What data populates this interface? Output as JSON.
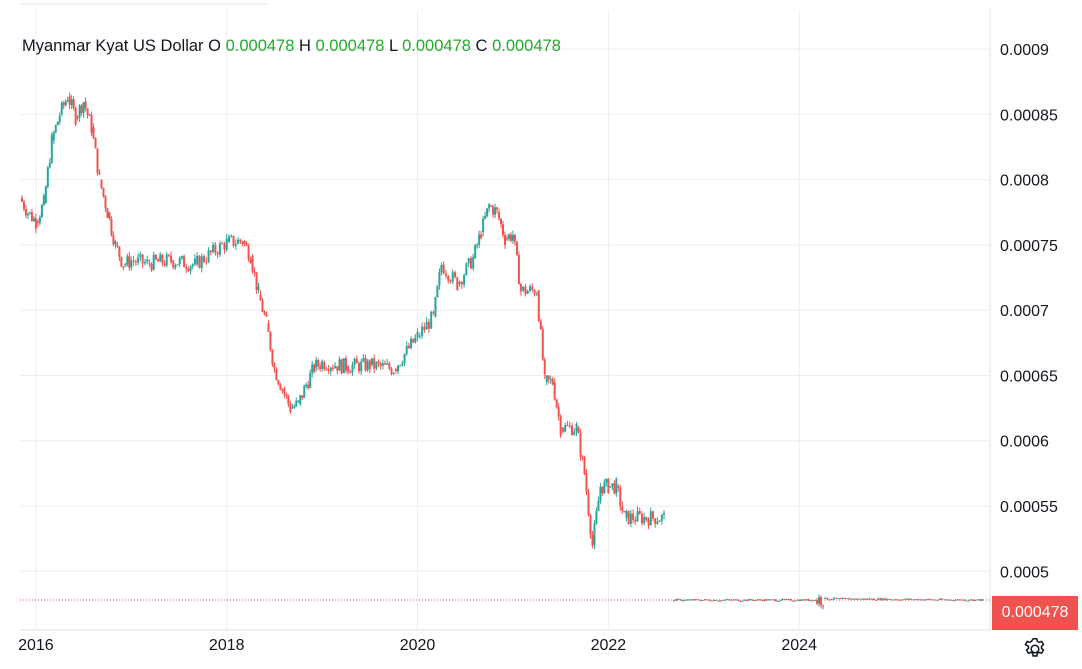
{
  "legend": {
    "symbol": "Myanmar Kyat US Dollar",
    "o_label": "O",
    "o_value": "0.000478",
    "h_label": "H",
    "h_value": "0.000478",
    "l_label": "L",
    "l_value": "0.000478",
    "c_label": "C",
    "c_value": "0.000478"
  },
  "last_price_label": "0.000478",
  "colors": {
    "up": "#26a69a",
    "down": "#ef5350",
    "grid": "#eeeeee",
    "value_text": "#22ab2a"
  },
  "icons": {
    "settings": "gear-icon"
  },
  "chart_data": {
    "type": "candlestick",
    "title": "",
    "xlabel": "",
    "ylabel": "",
    "x_ticks": [
      "2016",
      "2018",
      "2020",
      "2022",
      "2024"
    ],
    "y_ticks": [
      "0.0005",
      "0.00055",
      "0.0006",
      "0.00065",
      "0.0007",
      "0.00075",
      "0.0008",
      "0.00085",
      "0.0009"
    ],
    "ylim": [
      0.000455,
      0.00093
    ],
    "xlim": [
      "2015-11",
      "2026-01"
    ],
    "last_value": 0.000478,
    "grid": true,
    "series": [
      {
        "values": [
          {
            "t": "2015-11",
            "v": 0.000786
          },
          {
            "t": "2015-12",
            "v": 0.000775
          },
          {
            "t": "2016-01",
            "v": 0.000768
          },
          {
            "t": "2016-02",
            "v": 0.000782
          },
          {
            "t": "2016-03",
            "v": 0.00083
          },
          {
            "t": "2016-04",
            "v": 0.00085
          },
          {
            "t": "2016-05",
            "v": 0.000864
          },
          {
            "t": "2016-06",
            "v": 0.000848
          },
          {
            "t": "2016-07",
            "v": 0.00086
          },
          {
            "t": "2016-08",
            "v": 0.00084
          },
          {
            "t": "2016-09",
            "v": 0.0008
          },
          {
            "t": "2016-10",
            "v": 0.000775
          },
          {
            "t": "2016-11",
            "v": 0.00075
          },
          {
            "t": "2016-12",
            "v": 0.000735
          },
          {
            "t": "2017-01",
            "v": 0.000738
          },
          {
            "t": "2017-03",
            "v": 0.000736
          },
          {
            "t": "2017-06",
            "v": 0.000738
          },
          {
            "t": "2017-09",
            "v": 0.000735
          },
          {
            "t": "2018-01",
            "v": 0.000752
          },
          {
            "t": "2018-03",
            "v": 0.000753
          },
          {
            "t": "2018-04",
            "v": 0.000742
          },
          {
            "t": "2018-05",
            "v": 0.000712
          },
          {
            "t": "2018-06",
            "v": 0.00069
          },
          {
            "t": "2018-07",
            "v": 0.000655
          },
          {
            "t": "2018-08",
            "v": 0.00064
          },
          {
            "t": "2018-09",
            "v": 0.000625
          },
          {
            "t": "2018-10",
            "v": 0.000628
          },
          {
            "t": "2018-11",
            "v": 0.000643
          },
          {
            "t": "2018-12",
            "v": 0.000656
          },
          {
            "t": "2019-01",
            "v": 0.00066
          },
          {
            "t": "2019-04",
            "v": 0.000657
          },
          {
            "t": "2019-07",
            "v": 0.000658
          },
          {
            "t": "2019-10",
            "v": 0.000655
          },
          {
            "t": "2020-01",
            "v": 0.00068
          },
          {
            "t": "2020-03",
            "v": 0.000695
          },
          {
            "t": "2020-04",
            "v": 0.000735
          },
          {
            "t": "2020-06",
            "v": 0.00072
          },
          {
            "t": "2020-08",
            "v": 0.00074
          },
          {
            "t": "2020-09",
            "v": 0.00076
          },
          {
            "t": "2020-10",
            "v": 0.00078
          },
          {
            "t": "2020-11",
            "v": 0.000775
          },
          {
            "t": "2020-12",
            "v": 0.000755
          },
          {
            "t": "2021-01",
            "v": 0.000758
          },
          {
            "t": "2021-02",
            "v": 0.000715
          },
          {
            "t": "2021-04",
            "v": 0.000715
          },
          {
            "t": "2021-05",
            "v": 0.000645
          },
          {
            "t": "2021-06",
            "v": 0.000645
          },
          {
            "t": "2021-07",
            "v": 0.00061
          },
          {
            "t": "2021-09",
            "v": 0.00061
          },
          {
            "t": "2021-10",
            "v": 0.000575
          },
          {
            "t": "2021-11",
            "v": 0.00052
          },
          {
            "t": "2021-12",
            "v": 0.000565
          },
          {
            "t": "2022-01",
            "v": 0.000565
          },
          {
            "t": "2022-02",
            "v": 0.000565
          },
          {
            "t": "2022-03",
            "v": 0.000541
          },
          {
            "t": "2022-08",
            "v": 0.000541
          },
          {
            "t": "2022-09",
            "v": 0.000478
          },
          {
            "t": "2024-03",
            "v": 0.000478
          },
          {
            "t": "2024-04",
            "v": 0.000479
          },
          {
            "t": "2025-12",
            "v": 0.000478
          }
        ]
      }
    ]
  }
}
